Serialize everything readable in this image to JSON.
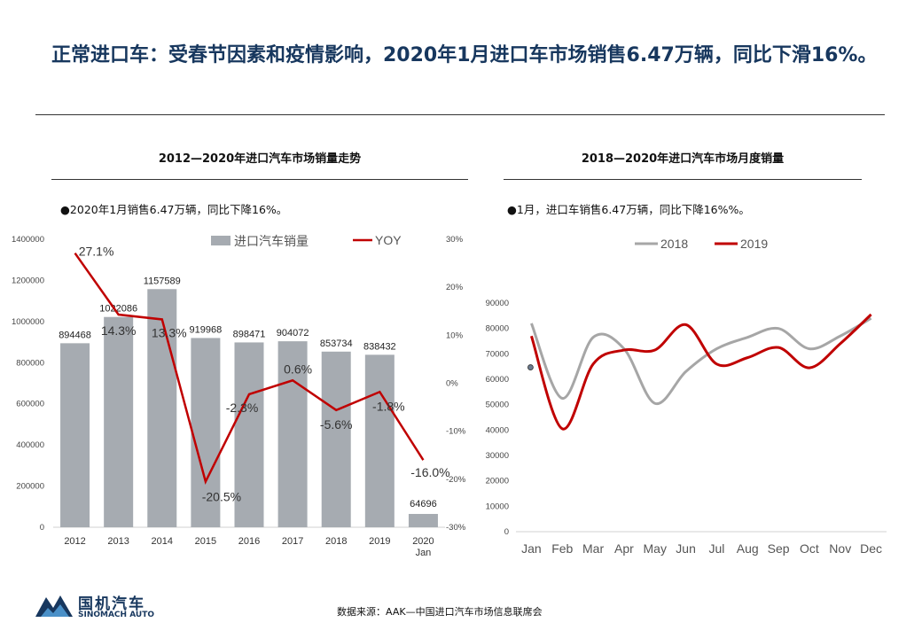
{
  "title": "正常进口车：受春节因素和疫情影响，2020年1月进口车市场销售6.47万辆，同比下滑16%。",
  "left_panel": {
    "title": "2012—2020年进口汽车市场销量走势",
    "note": "●2020年1月销售6.47万辆，同比下降16%。"
  },
  "right_panel": {
    "title": "2018—2020年进口汽车市场月度销量",
    "note": "●1月，进口车销售6.47万辆，同比下降16%%。"
  },
  "source": "数据来源：AAK—中国进口汽车市场信息联席会",
  "logo": {
    "cn": "国机汽车",
    "en": "SINOMACH AUTO"
  },
  "colors": {
    "title": "#17375e",
    "bar": "#a6abb1",
    "yoy": "#c00000",
    "s2018": "#a6a6a6",
    "s2019": "#c00000"
  },
  "chart_data": [
    {
      "type": "bar",
      "categories": [
        "2012",
        "2013",
        "2014",
        "2015",
        "2016",
        "2017",
        "2018",
        "2019",
        "2020\nJan"
      ],
      "y_ticks": [
        "0",
        "200000",
        "400000",
        "600000",
        "800000",
        "1000000",
        "1200000",
        "1400000"
      ],
      "y2_ticks": [
        "-30%",
        "-20%",
        "-10%",
        "0%",
        "10%",
        "20%",
        "30%"
      ],
      "ylim": [
        0,
        1400000
      ],
      "y2lim": [
        -30,
        30
      ],
      "legend_position": "top",
      "series": [
        {
          "name": "进口汽车销量",
          "type": "bar",
          "values": [
            894468,
            1022086,
            1157589,
            919968,
            898471,
            904072,
            853734,
            838432,
            64696
          ],
          "labels": [
            "894468",
            "1022086",
            "1157589",
            "919968",
            "898471",
            "904072",
            "853734",
            "838432",
            "64696"
          ]
        },
        {
          "name": "YOY",
          "type": "line",
          "axis": "right",
          "values": [
            27.1,
            14.3,
            13.3,
            -20.5,
            -2.3,
            0.6,
            -5.6,
            -1.8,
            -16.0
          ],
          "labels": [
            "27.1%",
            "14.3%",
            "13.3%",
            "-20.5%",
            "-2.3%",
            "0.6%",
            "-5.6%",
            "-1.8%",
            "-16.0%"
          ]
        }
      ]
    },
    {
      "type": "line",
      "categories": [
        "Jan",
        "Feb",
        "Mar",
        "Apr",
        "May",
        "Jun",
        "Jul",
        "Aug",
        "Sep",
        "Oct",
        "Nov",
        "Dec"
      ],
      "y_ticks": [
        "0",
        "10000",
        "20000",
        "30000",
        "40000",
        "50000",
        "60000",
        "70000",
        "80000",
        "90000"
      ],
      "ylim": [
        0,
        90000
      ],
      "legend_position": "top",
      "series": [
        {
          "name": "2018",
          "values": [
            82000,
            52500,
            76500,
            72000,
            50500,
            63000,
            72000,
            76500,
            80000,
            72000,
            77000,
            84000
          ]
        },
        {
          "name": "2019",
          "values": [
            77000,
            40500,
            66000,
            71500,
            71500,
            81500,
            66000,
            68500,
            72500,
            64500,
            74000,
            85500
          ]
        }
      ],
      "markers": [
        {
          "series": "2020",
          "category": "Jan",
          "value": 64696
        }
      ]
    }
  ]
}
